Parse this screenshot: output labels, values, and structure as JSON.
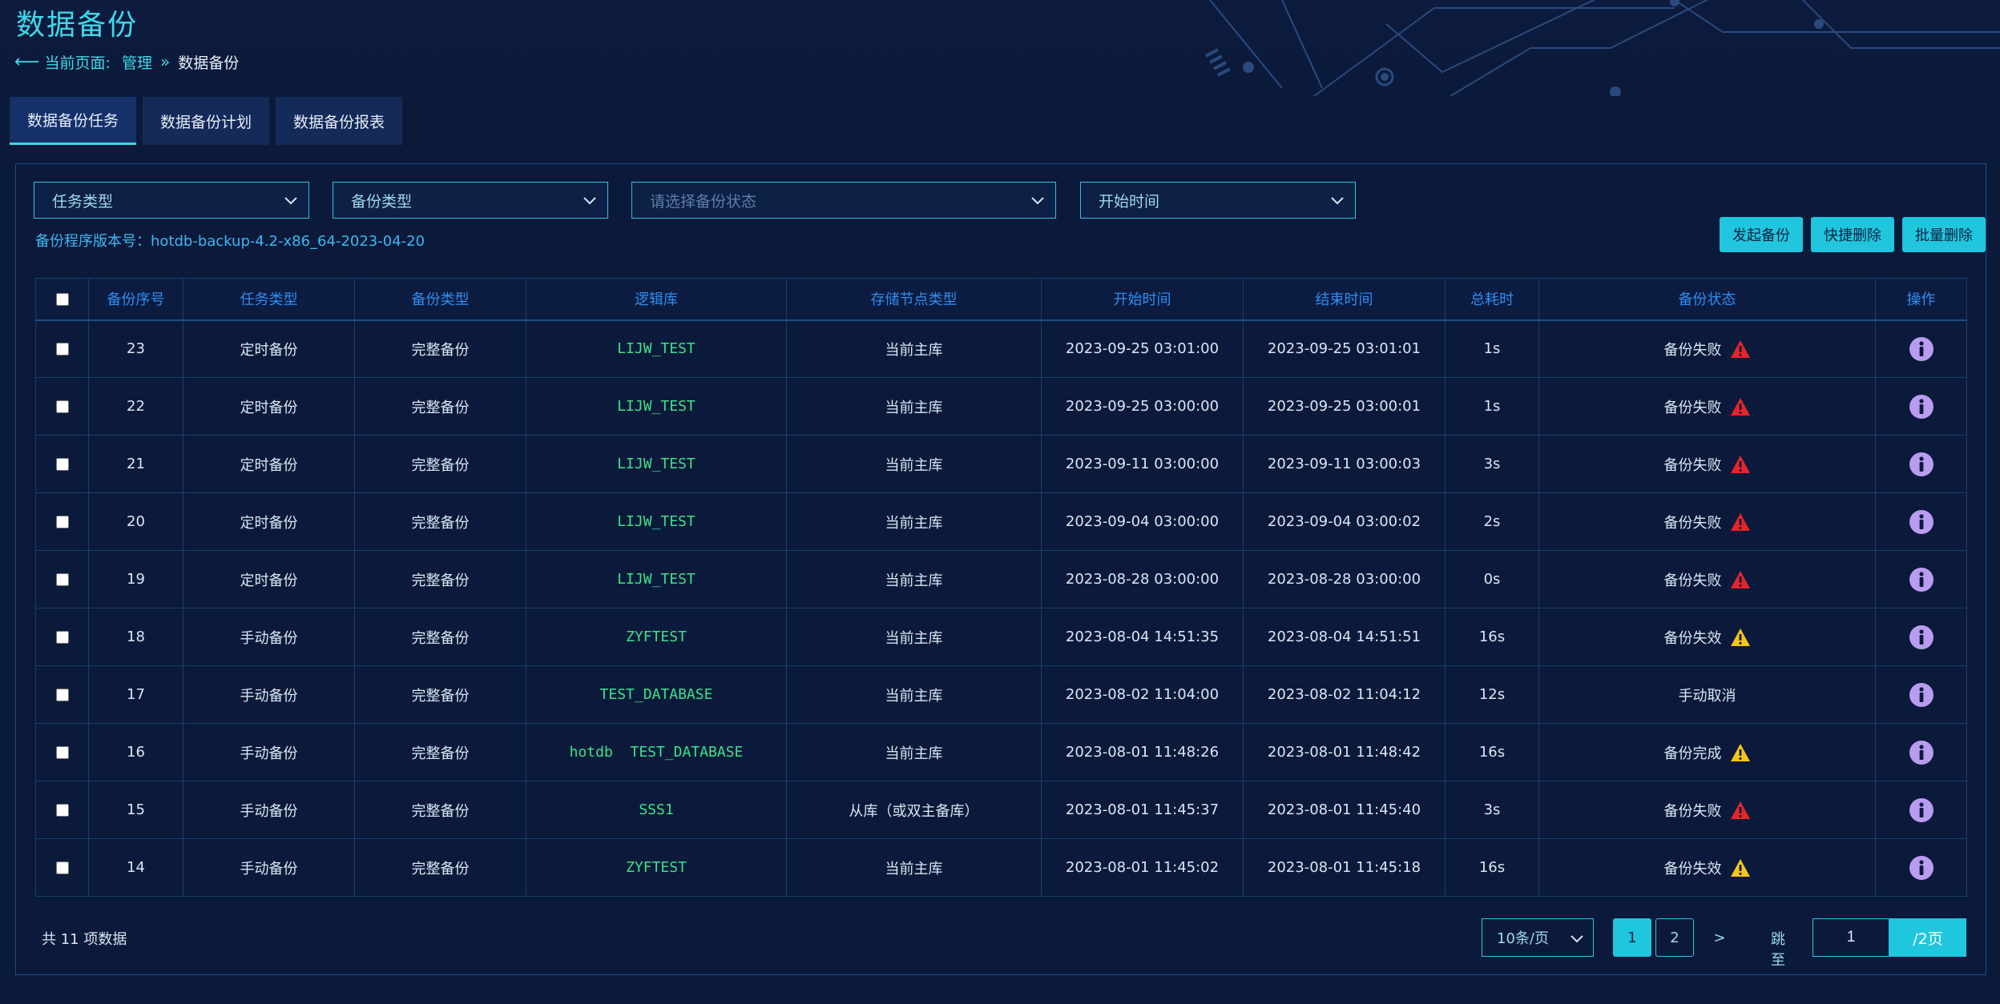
{
  "header": {
    "title": "数据备份",
    "breadcrumb": {
      "prefix": "当前页面:",
      "parent": "管理",
      "current": "数据备份"
    }
  },
  "tabs": [
    {
      "label": "数据备份任务"
    },
    {
      "label": "数据备份计划"
    },
    {
      "label": "数据备份报表"
    }
  ],
  "filters": {
    "task_type": "任务类型",
    "backup_type": "备份类型",
    "status_placeholder": "请选择备份状态",
    "start_time": "开始时间"
  },
  "version_label": "备份程序版本号：hotdb-backup-4.2-x86_64-2023-04-20",
  "actions": {
    "start": "发起备份",
    "quick_delete": "快捷删除",
    "batch_delete": "批量删除"
  },
  "table": {
    "headers": [
      "备份序号",
      "任务类型",
      "备份类型",
      "逻辑库",
      "存储节点类型",
      "开始时间",
      "结束时间",
      "总耗时",
      "备份状态",
      "操作"
    ],
    "rows": [
      {
        "id": "23",
        "task_type": "定时备份",
        "backup_type": "完整备份",
        "db": "LIJW_TEST",
        "node": "当前主库",
        "start": "2023-09-25 03:01:00",
        "end": "2023-09-25 03:01:01",
        "duration": "1s",
        "status": "备份失败",
        "icon": "error"
      },
      {
        "id": "22",
        "task_type": "定时备份",
        "backup_type": "完整备份",
        "db": "LIJW_TEST",
        "node": "当前主库",
        "start": "2023-09-25 03:00:00",
        "end": "2023-09-25 03:00:01",
        "duration": "1s",
        "status": "备份失败",
        "icon": "error"
      },
      {
        "id": "21",
        "task_type": "定时备份",
        "backup_type": "完整备份",
        "db": "LIJW_TEST",
        "node": "当前主库",
        "start": "2023-09-11 03:00:00",
        "end": "2023-09-11 03:00:03",
        "duration": "3s",
        "status": "备份失败",
        "icon": "error"
      },
      {
        "id": "20",
        "task_type": "定时备份",
        "backup_type": "完整备份",
        "db": "LIJW_TEST",
        "node": "当前主库",
        "start": "2023-09-04 03:00:00",
        "end": "2023-09-04 03:00:02",
        "duration": "2s",
        "status": "备份失败",
        "icon": "error"
      },
      {
        "id": "19",
        "task_type": "定时备份",
        "backup_type": "完整备份",
        "db": "LIJW_TEST",
        "node": "当前主库",
        "start": "2023-08-28 03:00:00",
        "end": "2023-08-28 03:00:00",
        "duration": "0s",
        "status": "备份失败",
        "icon": "error"
      },
      {
        "id": "18",
        "task_type": "手动备份",
        "backup_type": "完整备份",
        "db": "ZYFTEST",
        "node": "当前主库",
        "start": "2023-08-04 14:51:35",
        "end": "2023-08-04 14:51:51",
        "duration": "16s",
        "status": "备份失效",
        "icon": "warning"
      },
      {
        "id": "17",
        "task_type": "手动备份",
        "backup_type": "完整备份",
        "db": "TEST_DATABASE",
        "node": "当前主库",
        "start": "2023-08-02 11:04:00",
        "end": "2023-08-02 11:04:12",
        "duration": "12s",
        "status": "手动取消",
        "icon": "none"
      },
      {
        "id": "16",
        "task_type": "手动备份",
        "backup_type": "完整备份",
        "db": "hotdb  TEST_DATABASE",
        "node": "当前主库",
        "start": "2023-08-01 11:48:26",
        "end": "2023-08-01 11:48:42",
        "duration": "16s",
        "status": "备份完成",
        "icon": "warning"
      },
      {
        "id": "15",
        "task_type": "手动备份",
        "backup_type": "完整备份",
        "db": "SSS1",
        "node": "从库（或双主备库）",
        "start": "2023-08-01 11:45:37",
        "end": "2023-08-01 11:45:40",
        "duration": "3s",
        "status": "备份失败",
        "icon": "error"
      },
      {
        "id": "14",
        "task_type": "手动备份",
        "backup_type": "完整备份",
        "db": "ZYFTEST",
        "node": "当前主库",
        "start": "2023-08-01 11:45:02",
        "end": "2023-08-01 11:45:18",
        "duration": "16s",
        "status": "备份失效",
        "icon": "warning"
      }
    ]
  },
  "footer": {
    "total": "共 11 项数据",
    "page_size": "10条/页",
    "pages": [
      "1",
      "2"
    ],
    "next": ">",
    "jump_label": "跳至",
    "jump_value": "1",
    "jump_total": "/2页"
  },
  "colors": {
    "accent": "#1fc6dd",
    "error": "#e8242a",
    "warning": "#f5c518",
    "info": "#b99cf0"
  }
}
